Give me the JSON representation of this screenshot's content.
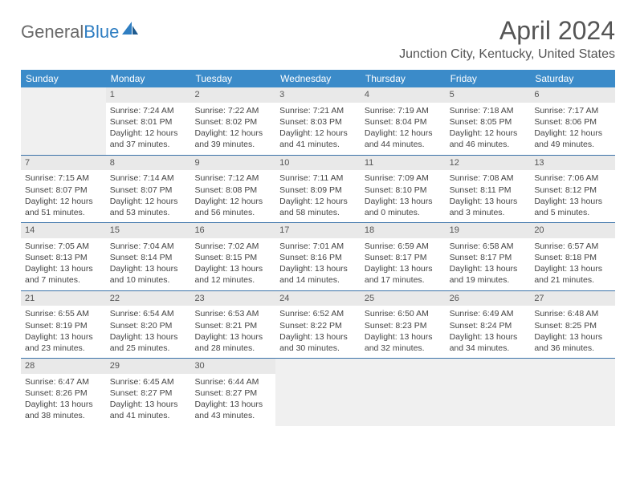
{
  "brand": {
    "word1": "General",
    "word2": "Blue"
  },
  "title": "April 2024",
  "location": "Junction City, Kentucky, United States",
  "colors": {
    "header_bg": "#3b8bc9",
    "accent": "#2f7ec2"
  },
  "dow": [
    "Sunday",
    "Monday",
    "Tuesday",
    "Wednesday",
    "Thursday",
    "Friday",
    "Saturday"
  ],
  "weeks": [
    [
      null,
      {
        "n": "1",
        "sr": "7:24 AM",
        "ss": "8:01 PM",
        "dlh": "12",
        "dlm": "37"
      },
      {
        "n": "2",
        "sr": "7:22 AM",
        "ss": "8:02 PM",
        "dlh": "12",
        "dlm": "39"
      },
      {
        "n": "3",
        "sr": "7:21 AM",
        "ss": "8:03 PM",
        "dlh": "12",
        "dlm": "41"
      },
      {
        "n": "4",
        "sr": "7:19 AM",
        "ss": "8:04 PM",
        "dlh": "12",
        "dlm": "44"
      },
      {
        "n": "5",
        "sr": "7:18 AM",
        "ss": "8:05 PM",
        "dlh": "12",
        "dlm": "46"
      },
      {
        "n": "6",
        "sr": "7:17 AM",
        "ss": "8:06 PM",
        "dlh": "12",
        "dlm": "49"
      }
    ],
    [
      {
        "n": "7",
        "sr": "7:15 AM",
        "ss": "8:07 PM",
        "dlh": "12",
        "dlm": "51"
      },
      {
        "n": "8",
        "sr": "7:14 AM",
        "ss": "8:07 PM",
        "dlh": "12",
        "dlm": "53"
      },
      {
        "n": "9",
        "sr": "7:12 AM",
        "ss": "8:08 PM",
        "dlh": "12",
        "dlm": "56"
      },
      {
        "n": "10",
        "sr": "7:11 AM",
        "ss": "8:09 PM",
        "dlh": "12",
        "dlm": "58"
      },
      {
        "n": "11",
        "sr": "7:09 AM",
        "ss": "8:10 PM",
        "dlh": "13",
        "dlm": "0"
      },
      {
        "n": "12",
        "sr": "7:08 AM",
        "ss": "8:11 PM",
        "dlh": "13",
        "dlm": "3"
      },
      {
        "n": "13",
        "sr": "7:06 AM",
        "ss": "8:12 PM",
        "dlh": "13",
        "dlm": "5"
      }
    ],
    [
      {
        "n": "14",
        "sr": "7:05 AM",
        "ss": "8:13 PM",
        "dlh": "13",
        "dlm": "7"
      },
      {
        "n": "15",
        "sr": "7:04 AM",
        "ss": "8:14 PM",
        "dlh": "13",
        "dlm": "10"
      },
      {
        "n": "16",
        "sr": "7:02 AM",
        "ss": "8:15 PM",
        "dlh": "13",
        "dlm": "12"
      },
      {
        "n": "17",
        "sr": "7:01 AM",
        "ss": "8:16 PM",
        "dlh": "13",
        "dlm": "14"
      },
      {
        "n": "18",
        "sr": "6:59 AM",
        "ss": "8:17 PM",
        "dlh": "13",
        "dlm": "17"
      },
      {
        "n": "19",
        "sr": "6:58 AM",
        "ss": "8:17 PM",
        "dlh": "13",
        "dlm": "19"
      },
      {
        "n": "20",
        "sr": "6:57 AM",
        "ss": "8:18 PM",
        "dlh": "13",
        "dlm": "21"
      }
    ],
    [
      {
        "n": "21",
        "sr": "6:55 AM",
        "ss": "8:19 PM",
        "dlh": "13",
        "dlm": "23"
      },
      {
        "n": "22",
        "sr": "6:54 AM",
        "ss": "8:20 PM",
        "dlh": "13",
        "dlm": "25"
      },
      {
        "n": "23",
        "sr": "6:53 AM",
        "ss": "8:21 PM",
        "dlh": "13",
        "dlm": "28"
      },
      {
        "n": "24",
        "sr": "6:52 AM",
        "ss": "8:22 PM",
        "dlh": "13",
        "dlm": "30"
      },
      {
        "n": "25",
        "sr": "6:50 AM",
        "ss": "8:23 PM",
        "dlh": "13",
        "dlm": "32"
      },
      {
        "n": "26",
        "sr": "6:49 AM",
        "ss": "8:24 PM",
        "dlh": "13",
        "dlm": "34"
      },
      {
        "n": "27",
        "sr": "6:48 AM",
        "ss": "8:25 PM",
        "dlh": "13",
        "dlm": "36"
      }
    ],
    [
      {
        "n": "28",
        "sr": "6:47 AM",
        "ss": "8:26 PM",
        "dlh": "13",
        "dlm": "38"
      },
      {
        "n": "29",
        "sr": "6:45 AM",
        "ss": "8:27 PM",
        "dlh": "13",
        "dlm": "41"
      },
      {
        "n": "30",
        "sr": "6:44 AM",
        "ss": "8:27 PM",
        "dlh": "13",
        "dlm": "43"
      },
      null,
      null,
      null,
      null
    ]
  ],
  "labels": {
    "sunrise": "Sunrise:",
    "sunset": "Sunset:",
    "daylight": "Daylight:",
    "hours": "hours",
    "and": "and",
    "minutes": "minutes."
  }
}
